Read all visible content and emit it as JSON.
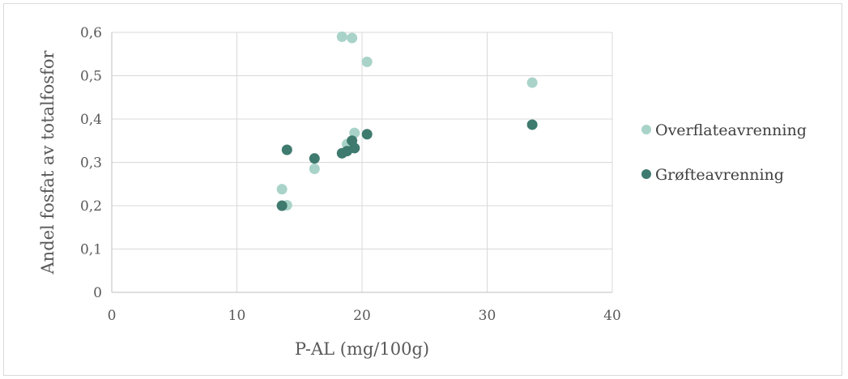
{
  "chart_data": {
    "type": "scatter",
    "title": "",
    "xlabel": "P-AL (mg/100g)",
    "ylabel": "Andel fosfat av totalfosfor",
    "xlim": [
      0,
      40
    ],
    "ylim": [
      0,
      0.6
    ],
    "x_ticks": [
      0,
      10,
      20,
      30,
      40
    ],
    "x_tick_labels": [
      "0",
      "10",
      "20",
      "30",
      "40"
    ],
    "y_ticks": [
      0,
      0.1,
      0.2,
      0.3,
      0.4,
      0.5,
      0.6
    ],
    "y_tick_labels": [
      "0",
      "0,1",
      "0,2",
      "0,3",
      "0,4",
      "0,5",
      "0,6"
    ],
    "grid": true,
    "legend_position": "right",
    "series": [
      {
        "name": "Overflateavrenning",
        "color": "#a9d3c9",
        "points": [
          {
            "x": 18.4,
            "y": 0.59
          },
          {
            "x": 19.2,
            "y": 0.587
          },
          {
            "x": 20.4,
            "y": 0.532
          },
          {
            "x": 33.6,
            "y": 0.484
          },
          {
            "x": 19.4,
            "y": 0.368
          },
          {
            "x": 18.8,
            "y": 0.342
          },
          {
            "x": 16.2,
            "y": 0.285
          },
          {
            "x": 13.6,
            "y": 0.238
          },
          {
            "x": 14.0,
            "y": 0.201
          }
        ]
      },
      {
        "name": "Grøfteavrenning",
        "color": "#3f7a6e",
        "points": [
          {
            "x": 33.6,
            "y": 0.387
          },
          {
            "x": 20.4,
            "y": 0.365
          },
          {
            "x": 19.2,
            "y": 0.35
          },
          {
            "x": 19.4,
            "y": 0.333
          },
          {
            "x": 18.8,
            "y": 0.326
          },
          {
            "x": 18.4,
            "y": 0.321
          },
          {
            "x": 14.0,
            "y": 0.329
          },
          {
            "x": 16.2,
            "y": 0.309
          },
          {
            "x": 13.6,
            "y": 0.2
          }
        ]
      }
    ]
  }
}
